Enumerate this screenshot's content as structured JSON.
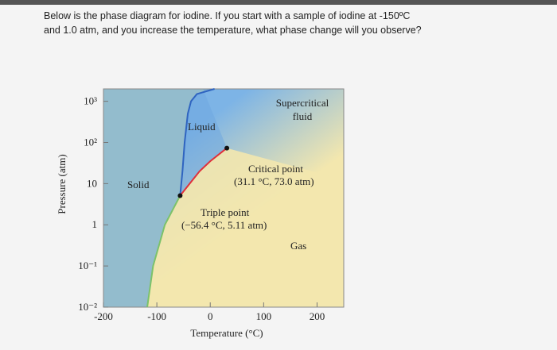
{
  "question": {
    "lines": [
      "Below is the phase diagram for iodine. If you start with a sample of iodine at -150ºC",
      "and 1.0 atm, and you increase the temperature, what phase change will you observe?"
    ]
  },
  "chart_data": {
    "type": "phase",
    "x_label": "Temperature (°C)",
    "y_label": "Pressure (atm)",
    "xlim": [
      -200,
      250
    ],
    "xticks": [
      -200,
      -100,
      0,
      100,
      200
    ],
    "ylim": [
      0.01,
      2000
    ],
    "log_y": true,
    "yticks": [
      {
        "value": 1000,
        "label": "10³"
      },
      {
        "value": 100,
        "label": "10²"
      },
      10,
      1,
      {
        "value": 0.1,
        "label": "10⁻¹"
      },
      {
        "value": 0.01,
        "label": "10⁻²"
      }
    ],
    "regions": {
      "solid": "Solid",
      "liquid": "Liquid",
      "gas": "Gas",
      "supercritical": [
        "Supercritical",
        "fluid"
      ]
    },
    "curves": [
      {
        "color": "#7cc26a",
        "x": [
          -118,
          -107,
          -85,
          -56.4
        ],
        "y": [
          0.01,
          0.1,
          1,
          5.11
        ]
      },
      {
        "color": "#2f64c0",
        "x": [
          -56.4,
          -52,
          -48,
          -42,
          -36,
          -25,
          8
        ],
        "y": [
          5.11,
          20,
          100,
          500,
          1000,
          1500,
          2000
        ]
      },
      {
        "color": "#e0303a",
        "x": [
          -56.4,
          -20,
          0,
          31.1
        ],
        "y": [
          5.11,
          20,
          35,
          73
        ]
      }
    ],
    "points": [
      {
        "name": "Critical point",
        "label": "(31.1 °C, 73.0 atm)",
        "x": 31.1,
        "y": 73
      },
      {
        "name": "Triple point",
        "label": "(−56.4 °C, 5.11 atm)",
        "x": -56.4,
        "y": 5.11
      }
    ]
  }
}
